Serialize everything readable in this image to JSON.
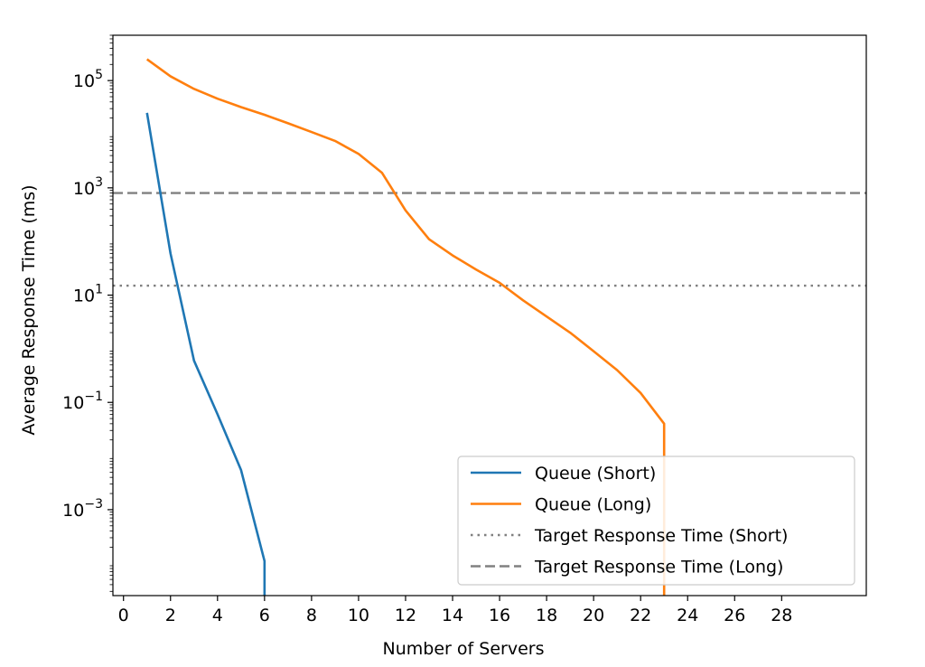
{
  "chart_data": {
    "type": "line",
    "title": "",
    "xlabel": "Number of Servers",
    "ylabel": "Average Response Time (ms)",
    "xlim": [
      -0.45,
      31.6
    ],
    "ylim": [
      2.5e-05,
      700000
    ],
    "yscale": "log",
    "xticks": [
      0,
      2,
      4,
      6,
      8,
      10,
      12,
      14,
      16,
      18,
      20,
      22,
      24,
      26,
      28
    ],
    "yticks": [
      {
        "value": 100000,
        "base": "10",
        "exp": "5"
      },
      {
        "value": 1000,
        "base": "10",
        "exp": "3"
      },
      {
        "value": 10,
        "base": "10",
        "exp": "1"
      },
      {
        "value": 0.1,
        "base": "10",
        "exp": "−1"
      },
      {
        "value": 0.001,
        "base": "10",
        "exp": "−3"
      }
    ],
    "grid": false,
    "legend": "lower-right",
    "series": [
      {
        "name": "Queue (Short)",
        "color": "#1f77b4",
        "style": "solid",
        "x": [
          1,
          2,
          3,
          4,
          5,
          6,
          6
        ],
        "y": [
          25000,
          60,
          0.6,
          0.06,
          0.0055,
          0.00011,
          2.5e-05
        ]
      },
      {
        "name": "Queue (Long)",
        "color": "#ff7f0e",
        "style": "solid",
        "x": [
          1,
          2,
          3,
          4,
          5,
          6,
          7,
          8,
          9,
          10,
          11,
          12,
          13,
          14,
          15,
          16,
          17,
          18,
          19,
          20,
          21,
          22,
          23,
          23
        ],
        "y": [
          250000,
          120000,
          70000,
          46000,
          32000,
          23000,
          16000,
          11000,
          7500,
          4300,
          1900,
          380,
          110,
          55,
          30,
          17,
          8,
          4,
          2,
          0.9,
          0.4,
          0.15,
          0.04,
          2.5e-05
        ]
      },
      {
        "name": "Target Response Time (Short)",
        "color": "#808080",
        "style": "dotted",
        "hline": 15
      },
      {
        "name": "Target Response Time (Long)",
        "color": "#808080",
        "style": "dashed",
        "hline": 800
      }
    ]
  }
}
